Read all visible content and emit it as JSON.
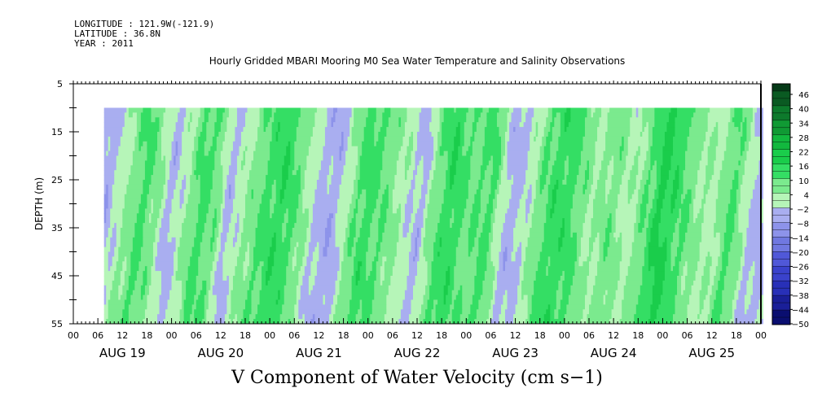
{
  "header": {
    "longitude": "LONGITUDE : 121.9W(-121.9)",
    "latitude": "LATITUDE : 36.8N",
    "year": "YEAR : 2011"
  },
  "chart_data": {
    "type": "heatmap",
    "title": "Hourly Gridded MBARI Mooring M0 Sea Water Temperature and Salinity Observations",
    "xlabel": "V Component of Water Velocity (cm s−1)",
    "ylabel": "DEPTH (m)",
    "ylim": [
      5,
      55
    ],
    "y_inverted": true,
    "y_ticks": [
      5,
      15,
      25,
      35,
      45,
      55
    ],
    "x_range_hours": [
      0,
      168
    ],
    "x_hour_ticks": [
      "00",
      "06",
      "12",
      "18",
      "00",
      "06",
      "12",
      "18",
      "00",
      "06",
      "12",
      "18",
      "00",
      "06",
      "12",
      "18",
      "00",
      "06",
      "12",
      "18",
      "00",
      "06",
      "12",
      "18",
      "00",
      "06",
      "12",
      "18",
      "00"
    ],
    "x_day_labels": [
      "AUG 19",
      "AUG 20",
      "AUG 21",
      "AUG 22",
      "AUG 23",
      "AUG 24",
      "AUG 25"
    ],
    "data_depth_range": [
      10,
      55
    ],
    "data_start_hour": 7.5,
    "data_end_hour": 168.5,
    "colorbar": {
      "labels": [
        "46",
        "40",
        "34",
        "28",
        "22",
        "16",
        "10",
        "4",
        "−2",
        "−8",
        "−14",
        "−20",
        "−26",
        "−32",
        "−38",
        "−44",
        "−50"
      ],
      "min": -50,
      "max": 50,
      "step": 3
    },
    "bands": [
      {
        "t": 7,
        "v": -5
      },
      {
        "t": 10,
        "v": -6
      },
      {
        "t": 14,
        "v": 3
      },
      {
        "t": 19,
        "v": 12
      },
      {
        "t": 22,
        "v": 6
      },
      {
        "t": 26,
        "v": -5
      },
      {
        "t": 30,
        "v": 4
      },
      {
        "t": 33,
        "v": 12
      },
      {
        "t": 37,
        "v": 8
      },
      {
        "t": 40,
        "v": -5
      },
      {
        "t": 44,
        "v": 4
      },
      {
        "t": 48,
        "v": 10
      },
      {
        "t": 53,
        "v": 15
      },
      {
        "t": 57,
        "v": 8
      },
      {
        "t": 62,
        "v": -4
      },
      {
        "t": 66,
        "v": -6
      },
      {
        "t": 70,
        "v": 6
      },
      {
        "t": 73,
        "v": 13
      },
      {
        "t": 78,
        "v": 9
      },
      {
        "t": 82,
        "v": 3
      },
      {
        "t": 87,
        "v": -5
      },
      {
        "t": 90,
        "v": 7
      },
      {
        "t": 94,
        "v": 15
      },
      {
        "t": 99,
        "v": 8
      },
      {
        "t": 104,
        "v": 12
      },
      {
        "t": 108,
        "v": -5
      },
      {
        "t": 112,
        "v": -3
      },
      {
        "t": 116,
        "v": 8
      },
      {
        "t": 120,
        "v": 14
      },
      {
        "t": 124,
        "v": 12
      },
      {
        "t": 129,
        "v": 3
      },
      {
        "t": 134,
        "v": 8
      },
      {
        "t": 138,
        "v": 1
      },
      {
        "t": 142,
        "v": 9
      },
      {
        "t": 146,
        "v": 18
      },
      {
        "t": 150,
        "v": 12
      },
      {
        "t": 155,
        "v": 4
      },
      {
        "t": 159,
        "v": 2
      },
      {
        "t": 163,
        "v": 12
      },
      {
        "t": 168,
        "v": -4
      }
    ]
  },
  "colors": {
    "background": "#ffffff",
    "axis": "#000000"
  }
}
